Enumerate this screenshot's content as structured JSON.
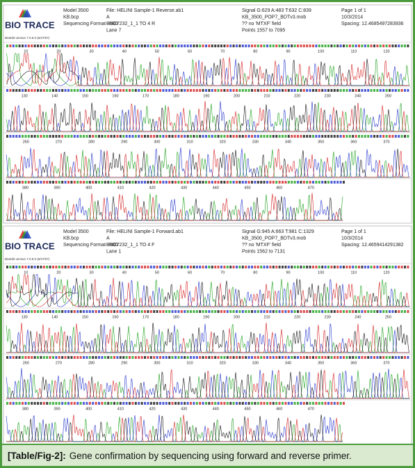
{
  "panels": [
    {
      "logo": "BIO TRACE",
      "version": "BioEdit version 7.0.9.0 (6/27/07)",
      "header": [
        [
          "Model 3500",
          "KB.bcp",
          "Sequencing Format 3500"
        ],
        [
          "File: HELINI Sample-1 Reverse.ab1",
          "A",
          "HBC7232_1_1 TO 4 R",
          "Lane 7"
        ],
        [
          "Signal G:629 A:483 T:632 C:839",
          "KB_3500_POP7_BDTv3.mob",
          "?? no 'MTXF' field",
          "Points 1557 to 7095"
        ],
        [
          "Page 1 of 1",
          "10/3/2014",
          "Spacing: 12.4685497283936"
        ]
      ],
      "rows": [
        [
          10,
          20,
          30,
          40,
          50,
          60,
          70,
          80,
          90,
          100,
          110,
          120
        ],
        [
          130,
          140,
          150,
          160,
          170,
          180,
          190,
          200,
          210,
          220,
          230,
          240,
          250
        ],
        [
          260,
          270,
          280,
          290,
          300,
          310,
          320,
          330,
          340,
          350,
          360,
          370
        ],
        [
          380,
          390,
          400,
          410,
          420,
          430,
          440,
          450,
          460,
          470
        ]
      ]
    },
    {
      "logo": "BIO TRACE",
      "version": "BioEdit version 7.0.9.0 (6/27/07)",
      "header": [
        [
          "Model 3500",
          "KB.bcp",
          "Sequencing Format 3500"
        ],
        [
          "File: HELINI Sample-1 Forward.ab1",
          "A",
          "HBC7232_1_1 TO 4 F",
          "Lane 1"
        ],
        [
          "Signal G:945 A:663 T:981 C:1329",
          "KB_3500_POP7_BDTv3.mob",
          "?? no 'MTXF' field",
          "Points 1562 to 7131"
        ],
        [
          "Page 1 of 1",
          "10/3/2014",
          "Spacing: 12.4659414291382"
        ]
      ],
      "rows": [
        [
          10,
          20,
          30,
          40,
          50,
          60,
          70,
          80,
          90,
          100,
          110,
          120
        ],
        [
          130,
          140,
          150,
          160,
          170,
          180,
          190,
          200,
          210,
          220,
          230,
          240,
          250
        ],
        [
          260,
          270,
          280,
          290,
          300,
          310,
          320,
          330,
          340,
          350,
          360,
          370
        ],
        [
          380,
          390,
          400,
          410,
          420,
          430,
          440,
          450,
          460,
          470
        ]
      ]
    }
  ],
  "caption": {
    "label": "[Table/Fig-2]:",
    "text": "Gene confirmation by sequencing using forward and reverse primer."
  }
}
